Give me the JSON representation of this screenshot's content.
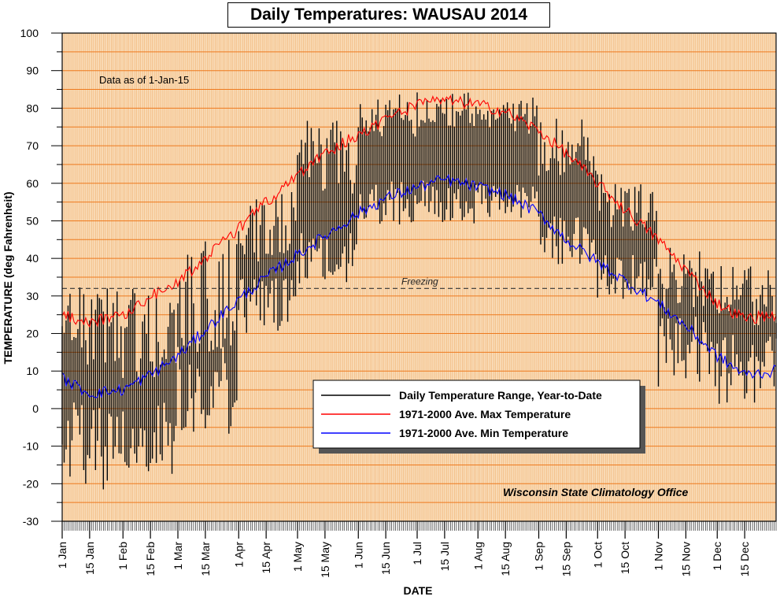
{
  "chart_data": {
    "type": "line",
    "title": "Daily Temperatures: WAUSAU 2014",
    "xlabel": "DATE",
    "ylabel": "TEMPERATURE (deg Fahrenheit)",
    "ylim": [
      -30,
      100
    ],
    "yticks": [
      -30,
      -20,
      -10,
      0,
      10,
      20,
      30,
      40,
      50,
      60,
      70,
      80,
      90,
      100
    ],
    "xlim_day_of_year": [
      1,
      365
    ],
    "xticks": [
      {
        "label": "1 Jan",
        "day": 1
      },
      {
        "label": "15 Jan",
        "day": 15
      },
      {
        "label": "1 Feb",
        "day": 32
      },
      {
        "label": "15 Feb",
        "day": 46
      },
      {
        "label": "1 Mar",
        "day": 60
      },
      {
        "label": "15 Mar",
        "day": 74
      },
      {
        "label": "1 Apr",
        "day": 91
      },
      {
        "label": "15 Apr",
        "day": 105
      },
      {
        "label": "1 May",
        "day": 121
      },
      {
        "label": "15 May",
        "day": 135
      },
      {
        "label": "1 Jun",
        "day": 152
      },
      {
        "label": "15 Jun",
        "day": 166
      },
      {
        "label": "1 Jul",
        "day": 182
      },
      {
        "label": "15 Jul",
        "day": 196
      },
      {
        "label": "1 Aug",
        "day": 213
      },
      {
        "label": "15 Aug",
        "day": 227
      },
      {
        "label": "1 Sep",
        "day": 244
      },
      {
        "label": "15 Sep",
        "day": 258
      },
      {
        "label": "1 Oct",
        "day": 274
      },
      {
        "label": "15 Oct",
        "day": 288
      },
      {
        "label": "1 Nov",
        "day": 305
      },
      {
        "label": "15 Nov",
        "day": 319
      },
      {
        "label": "1 Dec",
        "day": 335
      },
      {
        "label": "15 Dec",
        "day": 349
      }
    ],
    "grid": true,
    "annotations": {
      "data_as_of": "Data as of 1-Jan-15",
      "freezing_label": "Freezing",
      "freezing_value": 32,
      "source": "Wisconsin State Climatology Office"
    },
    "legend": {
      "placement": "lower-center",
      "entries": [
        {
          "label": "Daily Temperature Range, Year-to-Date",
          "color": "#000000"
        },
        {
          "label": "1971-2000 Ave. Max Temperature",
          "color": "#ff0000"
        },
        {
          "label": "1971-2000 Ave. Min Temperature",
          "color": "#0000ff"
        }
      ]
    },
    "series": [
      {
        "name": "1971-2000 Ave. Max Temperature",
        "color": "#ff0000",
        "x_day": [
          1,
          15,
          32,
          46,
          60,
          74,
          91,
          105,
          121,
          135,
          152,
          166,
          182,
          196,
          213,
          227,
          244,
          258,
          274,
          288,
          305,
          319,
          335,
          349,
          365
        ],
        "values": [
          25,
          23,
          25,
          30,
          34,
          40,
          48,
          55,
          62,
          68,
          73,
          77,
          81,
          82,
          81,
          79,
          74,
          68,
          60,
          53,
          45,
          37,
          28,
          24,
          25
        ]
      },
      {
        "name": "1971-2000 Ave. Min Temperature",
        "color": "#0000ff",
        "x_day": [
          1,
          15,
          32,
          46,
          60,
          74,
          91,
          105,
          121,
          135,
          152,
          166,
          182,
          196,
          213,
          227,
          244,
          258,
          274,
          288,
          305,
          319,
          335,
          349,
          365
        ],
        "values": [
          8,
          4,
          5,
          9,
          14,
          21,
          29,
          35,
          41,
          46,
          52,
          56,
          59,
          61,
          59,
          57,
          52,
          45,
          39,
          34,
          28,
          22,
          14,
          9,
          10
        ]
      },
      {
        "name": "Daily Temperature Range, Year-to-Date",
        "color": "#000000",
        "ranges_by_period": [
          {
            "start_day": 1,
            "end_day": 31,
            "high_center": 22,
            "high_var": 12,
            "low_center": -10,
            "low_var": 12
          },
          {
            "start_day": 32,
            "end_day": 59,
            "high_center": 20,
            "high_var": 13,
            "low_center": -8,
            "low_var": 10
          },
          {
            "start_day": 60,
            "end_day": 90,
            "high_center": 30,
            "high_var": 15,
            "low_center": 5,
            "low_var": 12
          },
          {
            "start_day": 91,
            "end_day": 120,
            "high_center": 48,
            "high_var": 10,
            "low_center": 27,
            "low_var": 8
          },
          {
            "start_day": 121,
            "end_day": 151,
            "high_center": 67,
            "high_var": 10,
            "low_center": 40,
            "low_var": 7
          },
          {
            "start_day": 152,
            "end_day": 181,
            "high_center": 78,
            "high_var": 6,
            "low_center": 55,
            "low_var": 6
          },
          {
            "start_day": 182,
            "end_day": 212,
            "high_center": 80,
            "high_var": 5,
            "low_center": 55,
            "low_var": 6
          },
          {
            "start_day": 213,
            "end_day": 243,
            "high_center": 78,
            "high_var": 5,
            "low_center": 55,
            "low_var": 5
          },
          {
            "start_day": 244,
            "end_day": 273,
            "high_center": 70,
            "high_var": 8,
            "low_center": 45,
            "low_var": 7
          },
          {
            "start_day": 274,
            "end_day": 304,
            "high_center": 55,
            "high_var": 8,
            "low_center": 35,
            "low_var": 6
          },
          {
            "start_day": 305,
            "end_day": 334,
            "high_center": 35,
            "high_var": 8,
            "low_center": 15,
            "low_var": 10
          },
          {
            "start_day": 335,
            "end_day": 365,
            "high_center": 30,
            "high_var": 8,
            "low_center": 10,
            "low_var": 10
          }
        ]
      }
    ]
  }
}
